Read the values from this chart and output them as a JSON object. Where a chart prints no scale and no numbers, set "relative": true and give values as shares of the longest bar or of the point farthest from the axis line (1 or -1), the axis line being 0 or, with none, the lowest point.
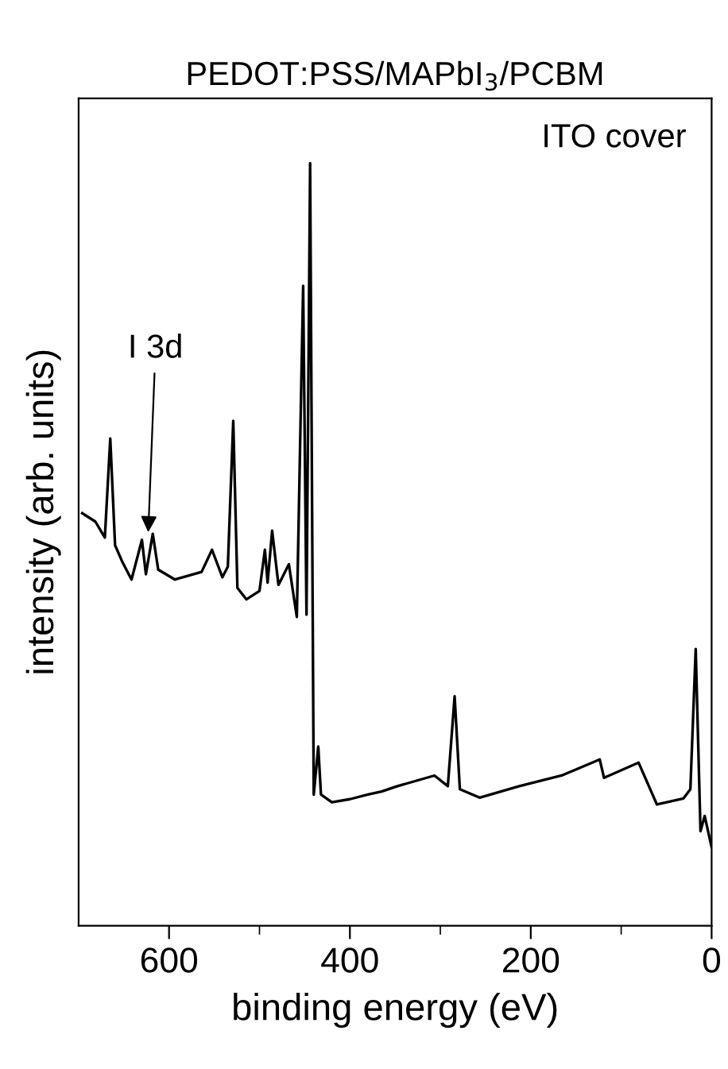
{
  "chart_data": {
    "type": "line",
    "title": "PEDOT:PSS/MAPbI$_{3}$/PCBM",
    "xlabel": "binding energy (eV)",
    "ylabel": "intensity (arb. units)",
    "relative": true,
    "tick_labels": "x",
    "xlim": [
      700,
      0
    ],
    "xticks": [
      600,
      {
        "value": 500,
        "label": null
      },
      400,
      {
        "value": 300,
        "label": null
      },
      200,
      {
        "value": 100,
        "label": null
      },
      0
    ],
    "annotations": [
      {
        "text": "I 3d",
        "x": 623,
        "y": 0.516
      },
      "ITO cover"
    ],
    "series": [
      {
        "color": "#000000",
        "x": [
          696,
          681.5,
          671,
          665,
          659.7,
          652,
          641.5,
          630,
          625.6,
          618,
          612,
          593.5,
          564,
          552.5,
          541,
          535,
          529,
          524.4,
          514.4,
          500,
          494,
          491,
          486,
          479,
          467.5,
          458.7,
          451.7,
          448,
          444,
          440,
          435,
          432,
          420,
          400,
          380,
          365,
          347.5,
          306.5,
          291.7,
          284.2,
          278.4,
          256.6,
          212.7,
          165.9,
          123.7,
          119,
          80.8,
          60.5,
          31.1,
          23.5,
          17.6,
          12.3,
          7.7,
          0
        ],
        "values": [
          0.541,
          0.53,
          0.509,
          0.639,
          0.499,
          0.478,
          0.454,
          0.506,
          0.461,
          0.514,
          0.467,
          0.454,
          0.464,
          0.493,
          0.457,
          0.471,
          0.662,
          0.443,
          0.428,
          0.439,
          0.493,
          0.45,
          0.518,
          0.447,
          0.474,
          0.405,
          0.839,
          0.408,
          1,
          0.172,
          0.235,
          0.172,
          0.162,
          0.166,
          0.172,
          0.176,
          0.183,
          0.197,
          0.183,
          0.301,
          0.179,
          0.168,
          0.183,
          0.197,
          0.218,
          0.194,
          0.214,
          0.159,
          0.167,
          0.179,
          0.363,
          0.124,
          0.144,
          0.103
        ]
      }
    ]
  }
}
